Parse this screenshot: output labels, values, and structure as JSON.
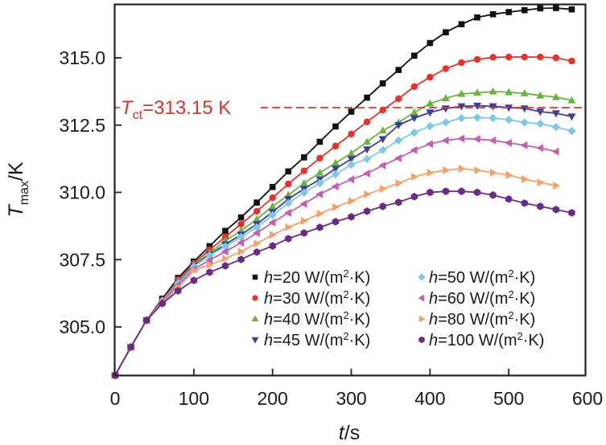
{
  "chart_data": {
    "type": "line",
    "title": "",
    "xlabel": {
      "italic": "t",
      "rest": "/s"
    },
    "ylabel": {
      "italic": "T",
      "sub": "max",
      "rest": "/K"
    },
    "xlim": [
      0,
      600
    ],
    "ylim": [
      303.2,
      317.0
    ],
    "xticks": [
      0,
      100,
      200,
      300,
      400,
      500,
      600
    ],
    "xtick_labels": [
      "0",
      "100",
      "200",
      "300",
      "400",
      "500",
      "600"
    ],
    "yticks": [
      305.0,
      307.5,
      310.0,
      312.5,
      315.0
    ],
    "ytick_labels": [
      "305.0",
      "307.5",
      "310.0",
      "312.5",
      "315.0"
    ],
    "grid": false,
    "legend_position": "lower-right",
    "reference_line": {
      "value": 313.15,
      "label_italic": "T",
      "label_sub": "ct",
      "label_rest": "=313.15 K",
      "color": "#d9342b",
      "style": "dashed"
    },
    "series": [
      {
        "name": "h=20 W/(m²·K)",
        "h": "20",
        "color": "#111111",
        "marker": "square",
        "x": [
          0,
          20,
          40,
          60,
          80,
          100,
          120,
          140,
          160,
          180,
          200,
          220,
          240,
          260,
          280,
          300,
          320,
          340,
          360,
          380,
          400,
          420,
          440,
          460,
          480,
          500,
          520,
          540,
          560,
          580
        ],
        "y": [
          303.2,
          304.25,
          305.25,
          306.05,
          306.82,
          307.43,
          308.0,
          308.57,
          309.07,
          309.62,
          310.2,
          310.78,
          311.3,
          311.88,
          312.45,
          313.0,
          313.52,
          314.05,
          314.55,
          315.08,
          315.55,
          315.95,
          316.25,
          316.5,
          316.62,
          316.7,
          316.77,
          316.84,
          316.85,
          316.8
        ]
      },
      {
        "name": "h=30 W/(m²·K)",
        "h": "30",
        "color": "#e8312a",
        "marker": "circle",
        "x": [
          0,
          20,
          40,
          60,
          80,
          100,
          120,
          140,
          160,
          180,
          200,
          220,
          240,
          260,
          280,
          300,
          320,
          340,
          360,
          380,
          400,
          420,
          440,
          460,
          480,
          500,
          520,
          540,
          560,
          580
        ],
        "y": [
          303.2,
          304.25,
          305.25,
          306.0,
          306.75,
          307.36,
          307.87,
          308.34,
          308.82,
          309.3,
          309.8,
          310.31,
          310.8,
          311.27,
          311.72,
          312.17,
          312.62,
          313.06,
          313.48,
          313.93,
          314.28,
          314.6,
          314.82,
          314.94,
          315.02,
          315.03,
          315.03,
          315.03,
          315.0,
          314.88
        ]
      },
      {
        "name": "h=40 W/(m²·K)",
        "h": "40",
        "color": "#6ab43e",
        "marker": "triangle-up",
        "x": [
          0,
          20,
          40,
          60,
          80,
          100,
          120,
          140,
          160,
          180,
          200,
          220,
          240,
          260,
          280,
          300,
          320,
          340,
          360,
          380,
          400,
          420,
          440,
          460,
          480,
          500,
          520,
          540,
          560,
          580
        ],
        "y": [
          303.2,
          304.25,
          305.25,
          305.98,
          306.7,
          307.3,
          307.75,
          308.2,
          308.58,
          309.0,
          309.48,
          309.9,
          310.34,
          310.73,
          311.09,
          311.45,
          311.88,
          312.3,
          312.6,
          312.97,
          313.3,
          313.5,
          313.66,
          313.7,
          313.75,
          313.72,
          313.68,
          313.6,
          313.54,
          313.42
        ]
      },
      {
        "name": "h=45 W/(m²·K)",
        "h": "45",
        "color": "#3b3f96",
        "marker": "triangle-down",
        "x": [
          0,
          20,
          40,
          60,
          80,
          100,
          120,
          140,
          160,
          180,
          200,
          220,
          240,
          260,
          280,
          300,
          320,
          340,
          360,
          380,
          400,
          420,
          440,
          460,
          480,
          500,
          520,
          540,
          560,
          580
        ],
        "y": [
          303.2,
          304.25,
          305.25,
          305.97,
          306.66,
          307.27,
          307.69,
          308.07,
          308.43,
          308.82,
          309.27,
          309.75,
          310.13,
          310.49,
          310.88,
          311.24,
          311.6,
          311.98,
          312.5,
          312.76,
          312.97,
          313.12,
          313.2,
          313.22,
          313.2,
          313.15,
          313.12,
          313.0,
          312.94,
          312.82
        ]
      },
      {
        "name": "h=50 W/(m²·K)",
        "h": "50",
        "color": "#7ec8e3",
        "marker": "diamond",
        "x": [
          0,
          20,
          40,
          60,
          80,
          100,
          120,
          140,
          160,
          180,
          200,
          220,
          240,
          260,
          280,
          300,
          320,
          340,
          360,
          380,
          400,
          420,
          440,
          460,
          480,
          500,
          520,
          540,
          560,
          580
        ],
        "y": [
          303.2,
          304.25,
          305.25,
          305.96,
          306.63,
          307.24,
          307.66,
          307.99,
          308.34,
          308.7,
          309.15,
          309.6,
          309.99,
          310.34,
          310.67,
          311.03,
          311.24,
          311.57,
          311.93,
          312.22,
          312.46,
          312.6,
          312.76,
          312.78,
          312.76,
          312.7,
          312.6,
          312.55,
          312.43,
          312.28
        ]
      },
      {
        "name": "h=60 W/(m²·K)",
        "h": "60",
        "color": "#c45fb0",
        "marker": "triangle-left",
        "x": [
          0,
          20,
          40,
          60,
          80,
          100,
          120,
          140,
          160,
          180,
          200,
          220,
          240,
          260,
          280,
          300,
          320,
          340,
          360,
          380,
          400,
          420,
          440,
          460,
          480,
          500,
          520,
          540,
          560
        ],
        "y": [
          303.2,
          304.25,
          305.25,
          305.94,
          306.56,
          307.15,
          307.48,
          307.8,
          308.13,
          308.49,
          308.88,
          309.24,
          309.57,
          309.93,
          310.22,
          310.48,
          310.7,
          311.0,
          311.27,
          311.57,
          311.8,
          311.93,
          312.0,
          311.98,
          311.93,
          311.84,
          311.75,
          311.65,
          311.52
        ]
      },
      {
        "name": "h=80 W/(m²·K)",
        "h": "80",
        "color": "#f5a06a",
        "marker": "triangle-right",
        "x": [
          0,
          20,
          40,
          60,
          80,
          100,
          120,
          140,
          160,
          180,
          200,
          220,
          240,
          260,
          280,
          300,
          320,
          340,
          360,
          380,
          400,
          420,
          440,
          460,
          480,
          500,
          520,
          540,
          560
        ],
        "y": [
          303.2,
          304.25,
          305.25,
          305.9,
          306.45,
          307.1,
          307.3,
          307.54,
          307.8,
          308.1,
          308.42,
          308.7,
          308.94,
          309.21,
          309.45,
          309.68,
          309.93,
          310.13,
          310.34,
          310.58,
          310.73,
          310.82,
          310.88,
          310.82,
          310.73,
          310.64,
          310.49,
          310.37,
          310.25
        ]
      },
      {
        "name": "h=100 W/(m²·K)",
        "h": "100",
        "color": "#6b2a86",
        "marker": "hexagon",
        "x": [
          0,
          20,
          40,
          60,
          80,
          100,
          120,
          140,
          160,
          180,
          200,
          220,
          240,
          260,
          280,
          300,
          320,
          340,
          360,
          380,
          400,
          420,
          440,
          460,
          480,
          500,
          520,
          540,
          560,
          580
        ],
        "y": [
          303.2,
          304.25,
          305.25,
          305.87,
          306.34,
          306.73,
          307.03,
          307.27,
          307.51,
          307.78,
          308.01,
          308.28,
          308.49,
          308.7,
          308.91,
          309.09,
          309.3,
          309.48,
          309.63,
          309.84,
          310.0,
          310.04,
          310.04,
          310.0,
          309.9,
          309.75,
          309.6,
          309.48,
          309.36,
          309.24
        ]
      }
    ],
    "legend": {
      "unit_text": "W/(m",
      "unit_sup": "2",
      "unit_tail": "·K)",
      "prefix_italic": "h",
      "eq": "="
    }
  }
}
